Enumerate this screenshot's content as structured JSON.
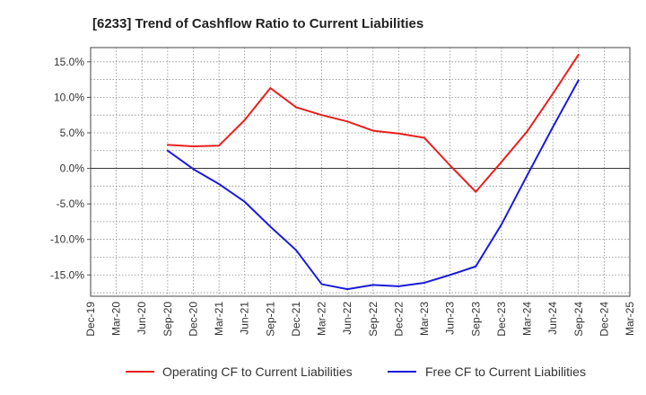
{
  "chart_data": {
    "type": "line",
    "title": "[6233]  Trend of Cashflow Ratio to Current Liabilities",
    "xlabel": "",
    "ylabel": "",
    "ylim": [
      -18,
      17
    ],
    "y_ticks": [
      15,
      10,
      5,
      0,
      -5,
      -10,
      -15
    ],
    "y_tick_labels": [
      "15.0%",
      "10.0%",
      "5.0%",
      "0.0%",
      "-5.0%",
      "-10.0%",
      "-15.0%"
    ],
    "categories": [
      "Dec-19",
      "Mar-20",
      "Jun-20",
      "Sep-20",
      "Dec-20",
      "Mar-21",
      "Jun-21",
      "Sep-21",
      "Dec-21",
      "Mar-22",
      "Jun-22",
      "Sep-22",
      "Dec-22",
      "Mar-23",
      "Jun-23",
      "Sep-23",
      "Dec-23",
      "Mar-24",
      "Jun-24",
      "Sep-24",
      "Dec-24",
      "Mar-25"
    ],
    "grid": true,
    "legend_position": "bottom",
    "series": [
      {
        "name": "Operating CF to Current Liabilities",
        "color": "#e8201e",
        "values": [
          null,
          null,
          null,
          3.3,
          3.1,
          3.2,
          6.8,
          11.3,
          8.6,
          7.5,
          6.6,
          5.3,
          4.9,
          4.3,
          0.4,
          -3.3,
          0.9,
          5.2,
          10.5,
          16.0,
          null,
          null
        ]
      },
      {
        "name": "Free CF to Current Liabilities",
        "color": "#1a1adb",
        "values": [
          null,
          null,
          null,
          2.5,
          -0.1,
          -2.2,
          -4.7,
          -8.2,
          -11.5,
          -16.3,
          -17.0,
          -16.4,
          -16.6,
          -16.1,
          -15.0,
          -13.8,
          -7.9,
          -1.0,
          5.8,
          12.4,
          null,
          null
        ]
      }
    ]
  }
}
